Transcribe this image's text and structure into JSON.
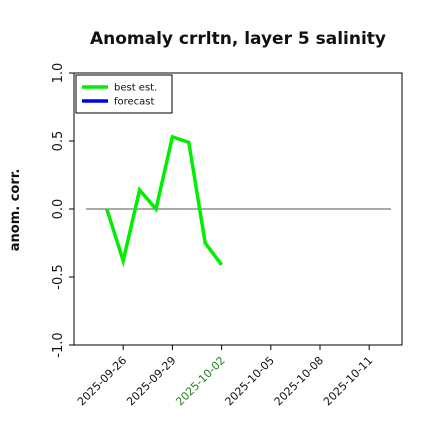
{
  "chart_data": {
    "type": "line",
    "title": "Anomaly crrltn, layer 5 salinity",
    "xlabel": "",
    "ylabel": "anom. corr.",
    "ylim": [
      -1.0,
      1.0
    ],
    "yticks": [
      -1.0,
      -0.5,
      0.0,
      0.5,
      1.0
    ],
    "ytick_labels": [
      "-1.0",
      "-0.5",
      "0.0",
      "0.5",
      "1.0"
    ],
    "xlim": [
      "2025-09-23",
      "2025-10-13"
    ],
    "xticks": [
      "2025-09-26",
      "2025-09-29",
      "2025-10-02",
      "2025-10-05",
      "2025-10-08",
      "2025-10-11"
    ],
    "highlight_tick": "2025-10-02",
    "tick_color": "#111111",
    "highlight_color": "#1a8a1a",
    "zero_line": true,
    "zero_line_color": "#555555",
    "grid": false,
    "legend_position": "top-left",
    "series": [
      {
        "name": "best est.",
        "color": "#00ee00",
        "x": [
          "2025-09-25",
          "2025-09-26",
          "2025-09-27",
          "2025-09-28",
          "2025-09-29",
          "2025-09-30",
          "2025-10-01",
          "2025-10-02"
        ],
        "values": [
          0.0,
          -0.38,
          0.14,
          0.0,
          0.53,
          0.49,
          -0.25,
          -0.41
        ]
      },
      {
        "name": "forecast",
        "color": "#0000ee",
        "x": [],
        "values": []
      }
    ]
  }
}
